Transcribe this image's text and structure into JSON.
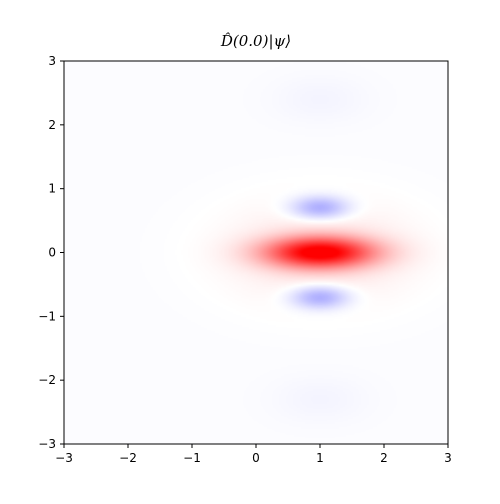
{
  "chart_data": {
    "type": "heatmap",
    "title": "D̂(0.0)|ψ⟩",
    "xlabel": "",
    "ylabel": "",
    "xlim": [
      -3,
      3
    ],
    "ylim": [
      -3,
      3
    ],
    "x_ticks": [
      "−3",
      "−2",
      "−1",
      "0",
      "1",
      "2",
      "3"
    ],
    "y_ticks": [
      "3",
      "2",
      "1",
      "0",
      "−1",
      "−2",
      "−3"
    ],
    "colormap": "bwr",
    "colors": {
      "positive": "#ff0000",
      "negative": "#0000ff",
      "zero": "#ffffff"
    },
    "features": [
      {
        "kind": "positive-peak",
        "center": [
          1.0,
          0.0
        ],
        "value": 1.0
      },
      {
        "kind": "negative-lobe",
        "center": [
          1.0,
          0.7
        ],
        "value": -0.35
      },
      {
        "kind": "negative-lobe",
        "center": [
          1.0,
          -0.7
        ],
        "value": -0.35
      },
      {
        "kind": "faint-negative-lobe",
        "center": [
          1.0,
          2.4
        ],
        "value": -0.03
      },
      {
        "kind": "faint-negative-lobe",
        "center": [
          1.0,
          -2.3
        ],
        "value": -0.03
      }
    ],
    "grid": false,
    "legend": "none"
  }
}
